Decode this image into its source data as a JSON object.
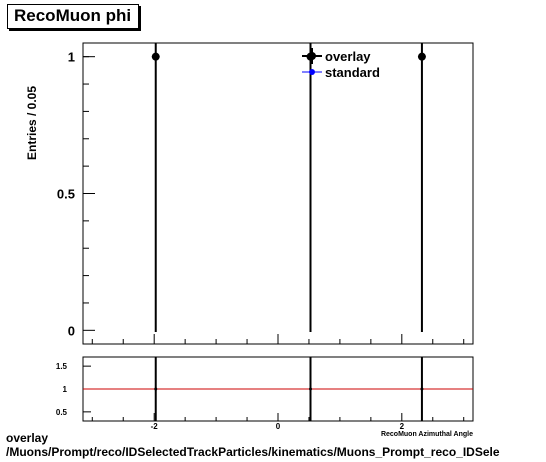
{
  "title": "RecoMuon phi",
  "footer": {
    "line1": "overlay",
    "line2": "/Muons/Prompt/reco/IDSelectedTrackParticles/kinematics/Muons_Prompt_reco_IDSele"
  },
  "chart_data": {
    "type": "scatter",
    "title": "RecoMuon phi",
    "ylabel": "Entries / 0.05",
    "xlabel": "RecoMuon Azimuthal Angle",
    "xlim": [
      -3.15,
      3.15
    ],
    "ylim": [
      -0.05,
      1.05
    ],
    "yticks": [
      0,
      0.5,
      1
    ],
    "ytick_labels": [
      "0",
      "0.5",
      "1"
    ],
    "legend": {
      "placement": "top-right",
      "entries": [
        {
          "name": "overlay",
          "color": "#000000"
        },
        {
          "name": "standard",
          "color": "#0000ff"
        }
      ]
    },
    "series": [
      {
        "name": "overlay",
        "color": "#000000",
        "x": [
          -1.975,
          0.525,
          2.325
        ],
        "y": [
          1,
          1,
          1
        ]
      },
      {
        "name": "standard",
        "color": "#0000ff",
        "x": [],
        "y": []
      }
    ],
    "ratio_panel": {
      "ylim": [
        0.3,
        1.7
      ],
      "yticks": [
        0.5,
        1,
        1.5
      ],
      "ytick_labels": [
        "0.5",
        "1",
        "1.5"
      ],
      "xticks": [
        -2,
        0,
        2
      ],
      "xtick_labels": [
        "-2",
        "0",
        "2"
      ],
      "reference_line": 1,
      "reference_color": "#cc0000",
      "x": [
        -1.975,
        0.525,
        2.325
      ],
      "y": [
        1,
        1,
        1
      ]
    }
  }
}
